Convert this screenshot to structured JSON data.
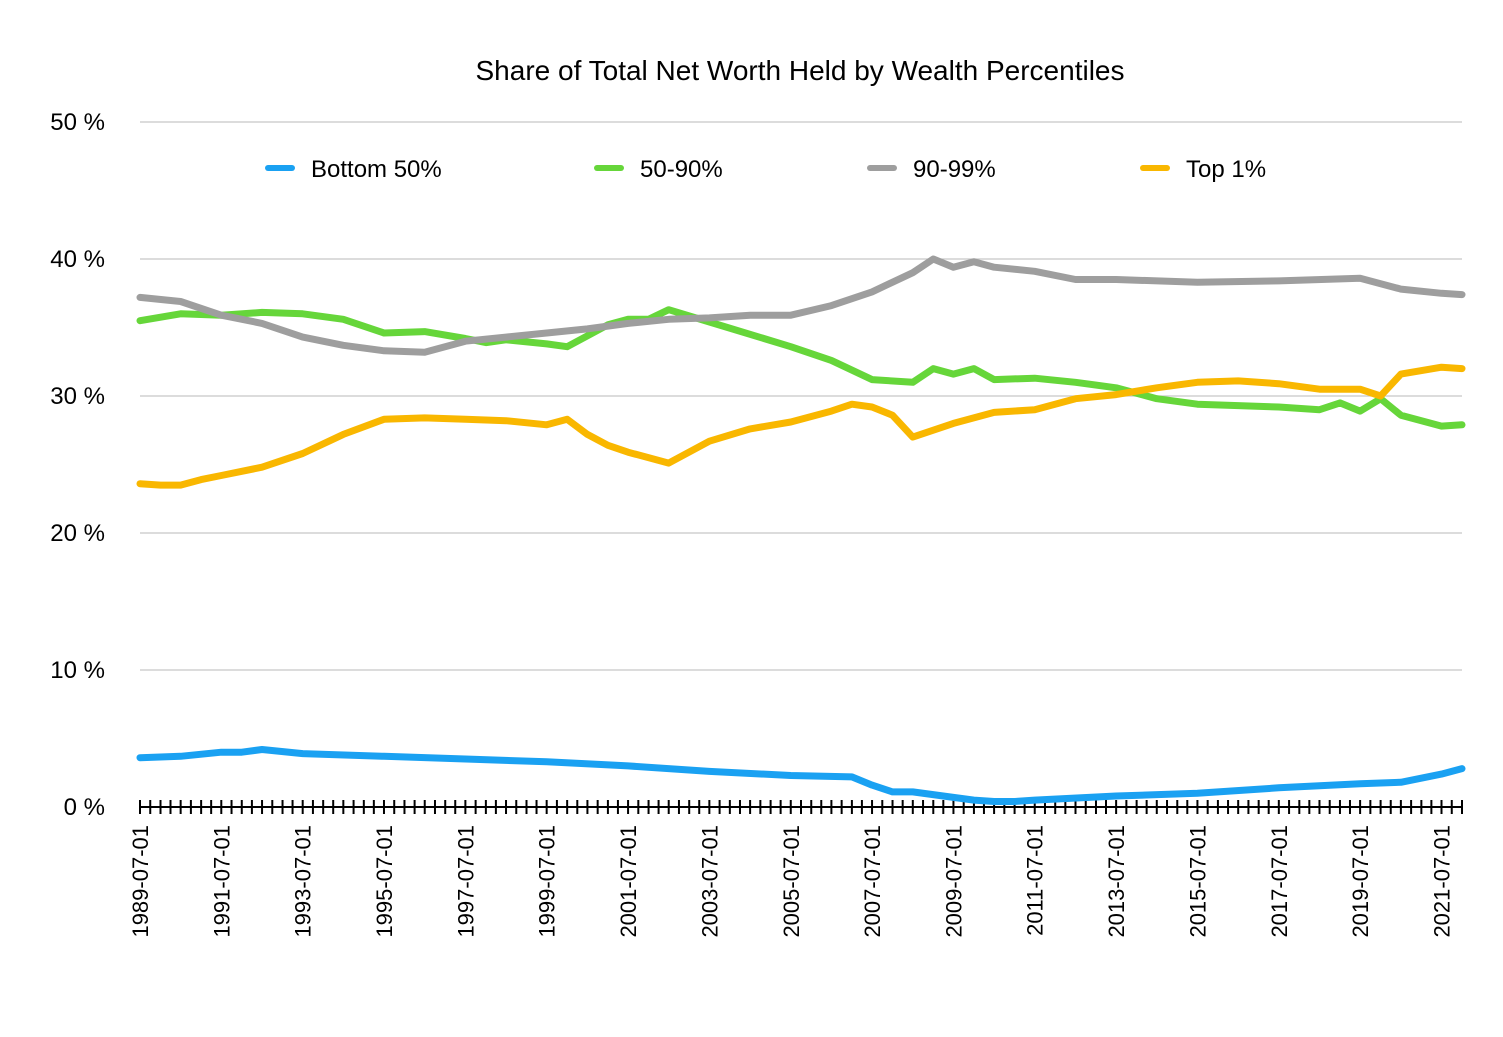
{
  "chart_data": {
    "type": "line",
    "title": "Share of Total Net Worth Held by Wealth Percentiles",
    "xlabel": "",
    "ylabel": "",
    "ylim": [
      0,
      50
    ],
    "yticks": [
      0,
      10,
      20,
      30,
      40,
      50
    ],
    "ytick_labels": [
      "0 %",
      "10 %",
      "20 %",
      "30 %",
      "40 %",
      "50 %"
    ],
    "x_range": [
      "1989-07-01",
      "2022-01-01"
    ],
    "xtick_labels": [
      "1989-07-01",
      "1991-07-01",
      "1993-07-01",
      "1995-07-01",
      "1997-07-01",
      "1999-07-01",
      "2001-07-01",
      "2003-07-01",
      "2005-07-01",
      "2007-07-01",
      "2009-07-01",
      "2011-07-01",
      "2013-07-01",
      "2015-07-01",
      "2017-07-01",
      "2019-07-01",
      "2021-07-01"
    ],
    "grid": true,
    "legend_position": "top",
    "series": [
      {
        "name": "Bottom 50%",
        "color": "#1AA1F2",
        "x": [
          "1989-07-01",
          "1990-07-01",
          "1991-07-01",
          "1992-01-01",
          "1992-07-01",
          "1993-07-01",
          "1995-07-01",
          "1997-07-01",
          "1999-07-01",
          "2001-07-01",
          "2003-07-01",
          "2005-07-01",
          "2007-01-01",
          "2007-07-01",
          "2008-01-01",
          "2008-07-01",
          "2009-07-01",
          "2010-01-01",
          "2010-07-01",
          "2011-01-01",
          "2011-07-01",
          "2013-07-01",
          "2015-07-01",
          "2017-07-01",
          "2019-07-01",
          "2020-07-01",
          "2021-07-01",
          "2022-01-01"
        ],
        "values": [
          3.6,
          3.7,
          4.0,
          4.0,
          4.2,
          3.9,
          3.7,
          3.5,
          3.3,
          3.0,
          2.6,
          2.3,
          2.2,
          1.6,
          1.1,
          1.1,
          0.7,
          0.5,
          0.4,
          0.4,
          0.5,
          0.8,
          1.0,
          1.4,
          1.7,
          1.8,
          2.4,
          2.8
        ]
      },
      {
        "name": "50-90%",
        "color": "#66D63A",
        "x": [
          "1989-07-01",
          "1990-07-01",
          "1991-07-01",
          "1992-07-01",
          "1993-07-01",
          "1994-07-01",
          "1995-07-01",
          "1996-07-01",
          "1997-07-01",
          "1998-01-01",
          "1998-07-01",
          "1999-07-01",
          "2000-01-01",
          "2001-01-01",
          "2001-07-01",
          "2002-01-01",
          "2002-07-01",
          "2003-07-01",
          "2005-07-01",
          "2006-07-01",
          "2007-07-01",
          "2008-07-01",
          "2009-01-01",
          "2009-07-01",
          "2010-01-01",
          "2010-07-01",
          "2011-07-01",
          "2012-07-01",
          "2013-07-01",
          "2014-07-01",
          "2015-07-01",
          "2016-07-01",
          "2017-07-01",
          "2018-07-01",
          "2019-01-01",
          "2019-07-01",
          "2020-01-01",
          "2020-07-01",
          "2021-07-01",
          "2022-01-01"
        ],
        "values": [
          35.5,
          36.0,
          35.9,
          36.1,
          36.0,
          35.6,
          34.6,
          34.7,
          34.2,
          33.9,
          34.1,
          33.8,
          33.6,
          35.2,
          35.6,
          35.6,
          36.3,
          35.4,
          33.6,
          32.6,
          31.2,
          31.0,
          32.0,
          31.6,
          32.0,
          31.2,
          31.3,
          31.0,
          30.6,
          29.8,
          29.4,
          29.3,
          29.2,
          29.0,
          29.5,
          28.9,
          29.8,
          28.6,
          27.8,
          27.9
        ]
      },
      {
        "name": "90-99%",
        "color": "#9E9E9E",
        "x": [
          "1989-07-01",
          "1990-07-01",
          "1991-07-01",
          "1992-07-01",
          "1993-07-01",
          "1994-07-01",
          "1995-07-01",
          "1996-07-01",
          "1997-07-01",
          "1998-07-01",
          "1999-07-01",
          "2000-07-01",
          "2001-07-01",
          "2002-07-01",
          "2003-07-01",
          "2004-07-01",
          "2005-07-01",
          "2006-07-01",
          "2007-07-01",
          "2008-07-01",
          "2009-01-01",
          "2009-07-01",
          "2010-01-01",
          "2010-07-01",
          "2011-07-01",
          "2012-07-01",
          "2013-07-01",
          "2015-07-01",
          "2017-07-01",
          "2019-07-01",
          "2020-07-01",
          "2021-07-01",
          "2022-01-01"
        ],
        "values": [
          37.2,
          36.9,
          35.9,
          35.3,
          34.3,
          33.7,
          33.3,
          33.2,
          34.0,
          34.3,
          34.6,
          34.9,
          35.3,
          35.6,
          35.7,
          35.9,
          35.9,
          36.6,
          37.6,
          39.0,
          40.0,
          39.4,
          39.8,
          39.4,
          39.1,
          38.5,
          38.5,
          38.3,
          38.4,
          38.6,
          37.8,
          37.5,
          37.4
        ]
      },
      {
        "name": "Top 1%",
        "color": "#F9B700",
        "x": [
          "1989-07-01",
          "1990-01-01",
          "1990-07-01",
          "1991-01-01",
          "1991-07-01",
          "1992-07-01",
          "1993-07-01",
          "1994-07-01",
          "1995-07-01",
          "1996-07-01",
          "1997-07-01",
          "1998-07-01",
          "1999-07-01",
          "2000-01-01",
          "2000-07-01",
          "2001-01-01",
          "2001-07-01",
          "2002-07-01",
          "2003-07-01",
          "2004-07-01",
          "2005-07-01",
          "2006-07-01",
          "2007-01-01",
          "2007-07-01",
          "2008-01-01",
          "2008-07-01",
          "2009-01-01",
          "2009-07-01",
          "2010-07-01",
          "2011-07-01",
          "2012-07-01",
          "2013-07-01",
          "2014-07-01",
          "2015-07-01",
          "2016-07-01",
          "2017-07-01",
          "2018-07-01",
          "2019-07-01",
          "2020-01-01",
          "2020-07-01",
          "2021-07-01",
          "2022-01-01"
        ],
        "values": [
          23.6,
          23.5,
          23.5,
          23.9,
          24.2,
          24.8,
          25.8,
          27.2,
          28.3,
          28.4,
          28.3,
          28.2,
          27.9,
          28.3,
          27.2,
          26.4,
          25.9,
          25.1,
          26.7,
          27.6,
          28.1,
          28.9,
          29.4,
          29.2,
          28.6,
          27.0,
          27.5,
          28.0,
          28.8,
          29.0,
          29.8,
          30.1,
          30.6,
          31.0,
          31.1,
          30.9,
          30.5,
          30.5,
          30.0,
          31.6,
          32.1,
          32.0
        ]
      }
    ]
  }
}
